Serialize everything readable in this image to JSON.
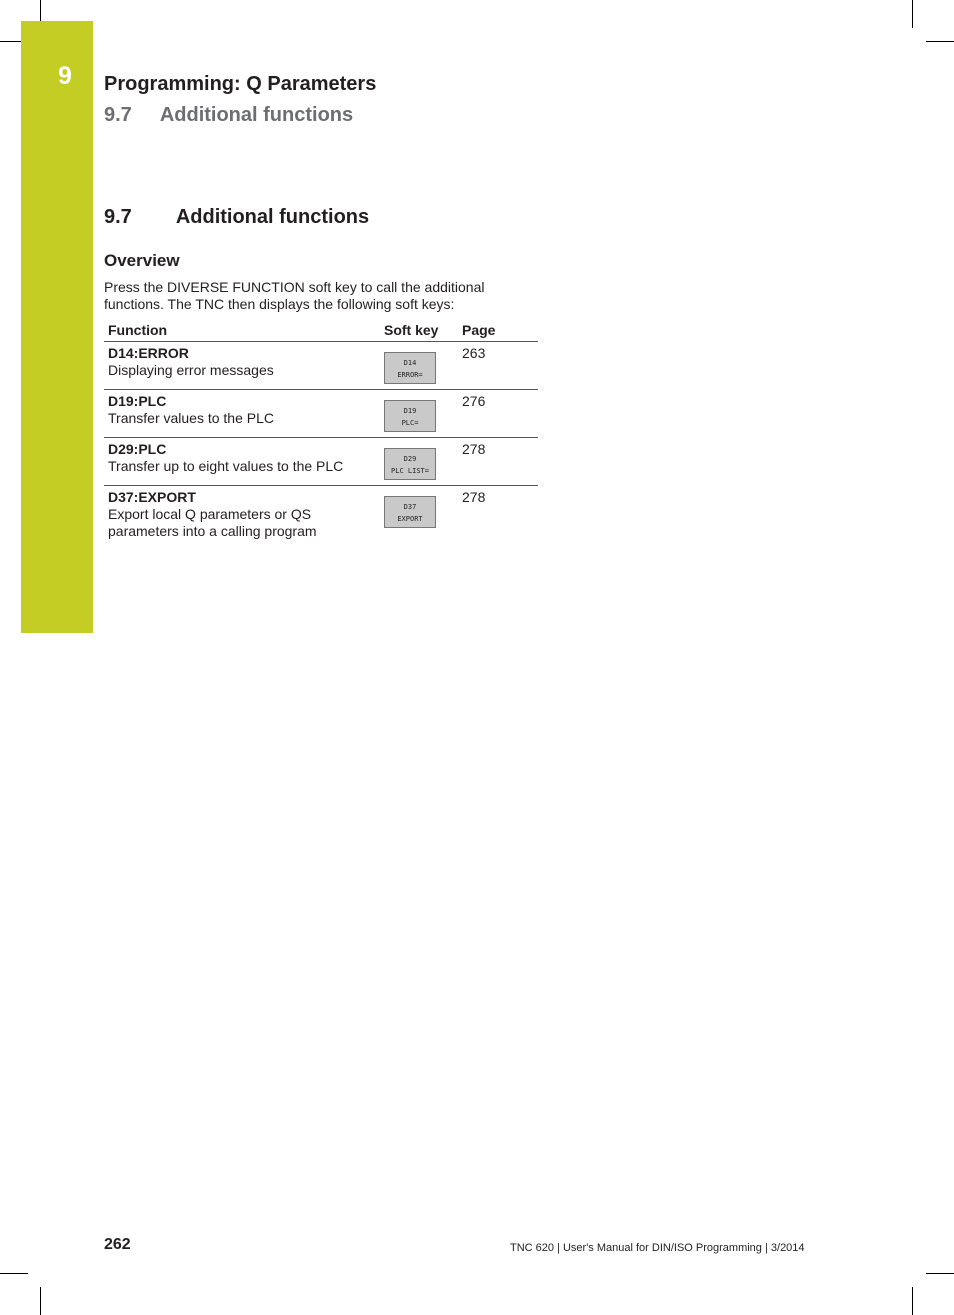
{
  "chapter": {
    "number": "9",
    "title": "Programming: Q Parameters",
    "section_number": "9.7",
    "section_title": "Additional functions"
  },
  "section": {
    "number": "9.7",
    "title": "Additional functions"
  },
  "subheading": "Overview",
  "intro": "Press the DIVERSE FUNCTION soft key to call the additional functions. The TNC then displays the following soft keys:",
  "table": {
    "headers": [
      "Function",
      "Soft key",
      "Page"
    ],
    "rows": [
      {
        "name": "D14:ERROR",
        "desc": "Displaying error messages",
        "key1": "D14",
        "key2": "ERROR=",
        "page": "263"
      },
      {
        "name": "D19:PLC",
        "desc": "Transfer values to the PLC",
        "key1": "D19",
        "key2": "PLC=",
        "page": "276"
      },
      {
        "name": "D29:PLC",
        "desc": "Transfer up to eight values to the PLC",
        "key1": "D29",
        "key2": "PLC LIST=",
        "page": "278"
      },
      {
        "name": "D37:EXPORT",
        "desc": "Export local Q parameters or QS parameters into a calling program",
        "key1": "D37",
        "key2": "EXPORT",
        "page": "278"
      }
    ]
  },
  "footer": {
    "page_number": "262",
    "text": "TNC 620 | User's Manual for DIN/ISO Programming | 3/2014"
  },
  "colors": {
    "accent": "#c3cd23"
  }
}
